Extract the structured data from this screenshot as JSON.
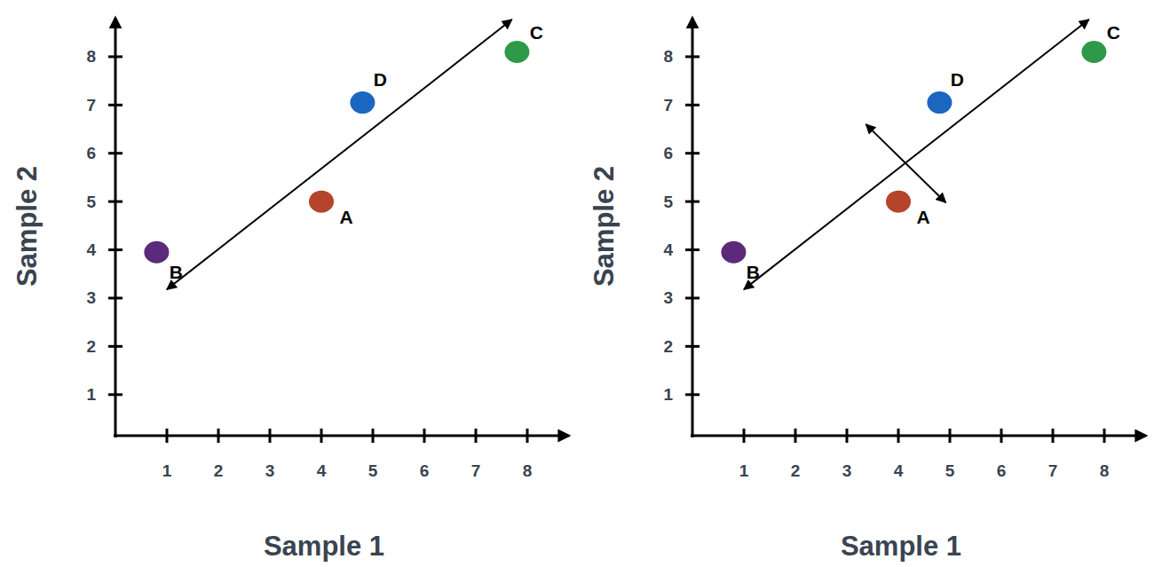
{
  "chart_data": [
    {
      "type": "scatter",
      "xlabel": "Sample 1",
      "ylabel": "Sample 2",
      "xlim": [
        0,
        8.8
      ],
      "ylim": [
        0.15,
        8.8
      ],
      "xticks": [
        1,
        2,
        3,
        4,
        5,
        6,
        7,
        8
      ],
      "yticks": [
        1,
        2,
        3,
        4,
        5,
        6,
        7,
        8
      ],
      "series": [
        {
          "type": "scatter",
          "marker": "circle",
          "x": [
            0.8,
            4,
            4.8,
            7.8
          ],
          "values": [
            3.95,
            5,
            7.05,
            8.1
          ],
          "labels": [
            "B",
            "A",
            "D",
            "C"
          ],
          "colors": [
            "#5b2a7a",
            "#b5442c",
            "#1a66c0",
            "#2e9a47"
          ]
        },
        {
          "type": "line",
          "marker": "arrow",
          "color": "#000000",
          "x": [
            1,
            7.7
          ],
          "values": [
            3.18,
            8.77
          ]
        }
      ]
    },
    {
      "type": "scatter",
      "xlabel": "Sample 1",
      "ylabel": "Sample 2",
      "xlim": [
        0,
        8.8
      ],
      "ylim": [
        0.15,
        8.8
      ],
      "xticks": [
        1,
        2,
        3,
        4,
        5,
        6,
        7,
        8
      ],
      "yticks": [
        1,
        2,
        3,
        4,
        5,
        6,
        7,
        8
      ],
      "series": [
        {
          "type": "scatter",
          "marker": "circle",
          "x": [
            0.8,
            4,
            4.8,
            7.8
          ],
          "values": [
            3.95,
            5,
            7.05,
            8.1
          ],
          "labels": [
            "B",
            "A",
            "D",
            "C"
          ],
          "colors": [
            "#5b2a7a",
            "#b5442c",
            "#1a66c0",
            "#2e9a47"
          ]
        },
        {
          "type": "line",
          "marker": "arrow",
          "color": "#000000",
          "x": [
            1,
            7.7
          ],
          "values": [
            3.18,
            8.77
          ]
        },
        {
          "type": "line",
          "marker": "arrow",
          "color": "#000000",
          "x": [
            3.37,
            4.92
          ],
          "values": [
            6.6,
            4.98
          ]
        }
      ]
    }
  ]
}
